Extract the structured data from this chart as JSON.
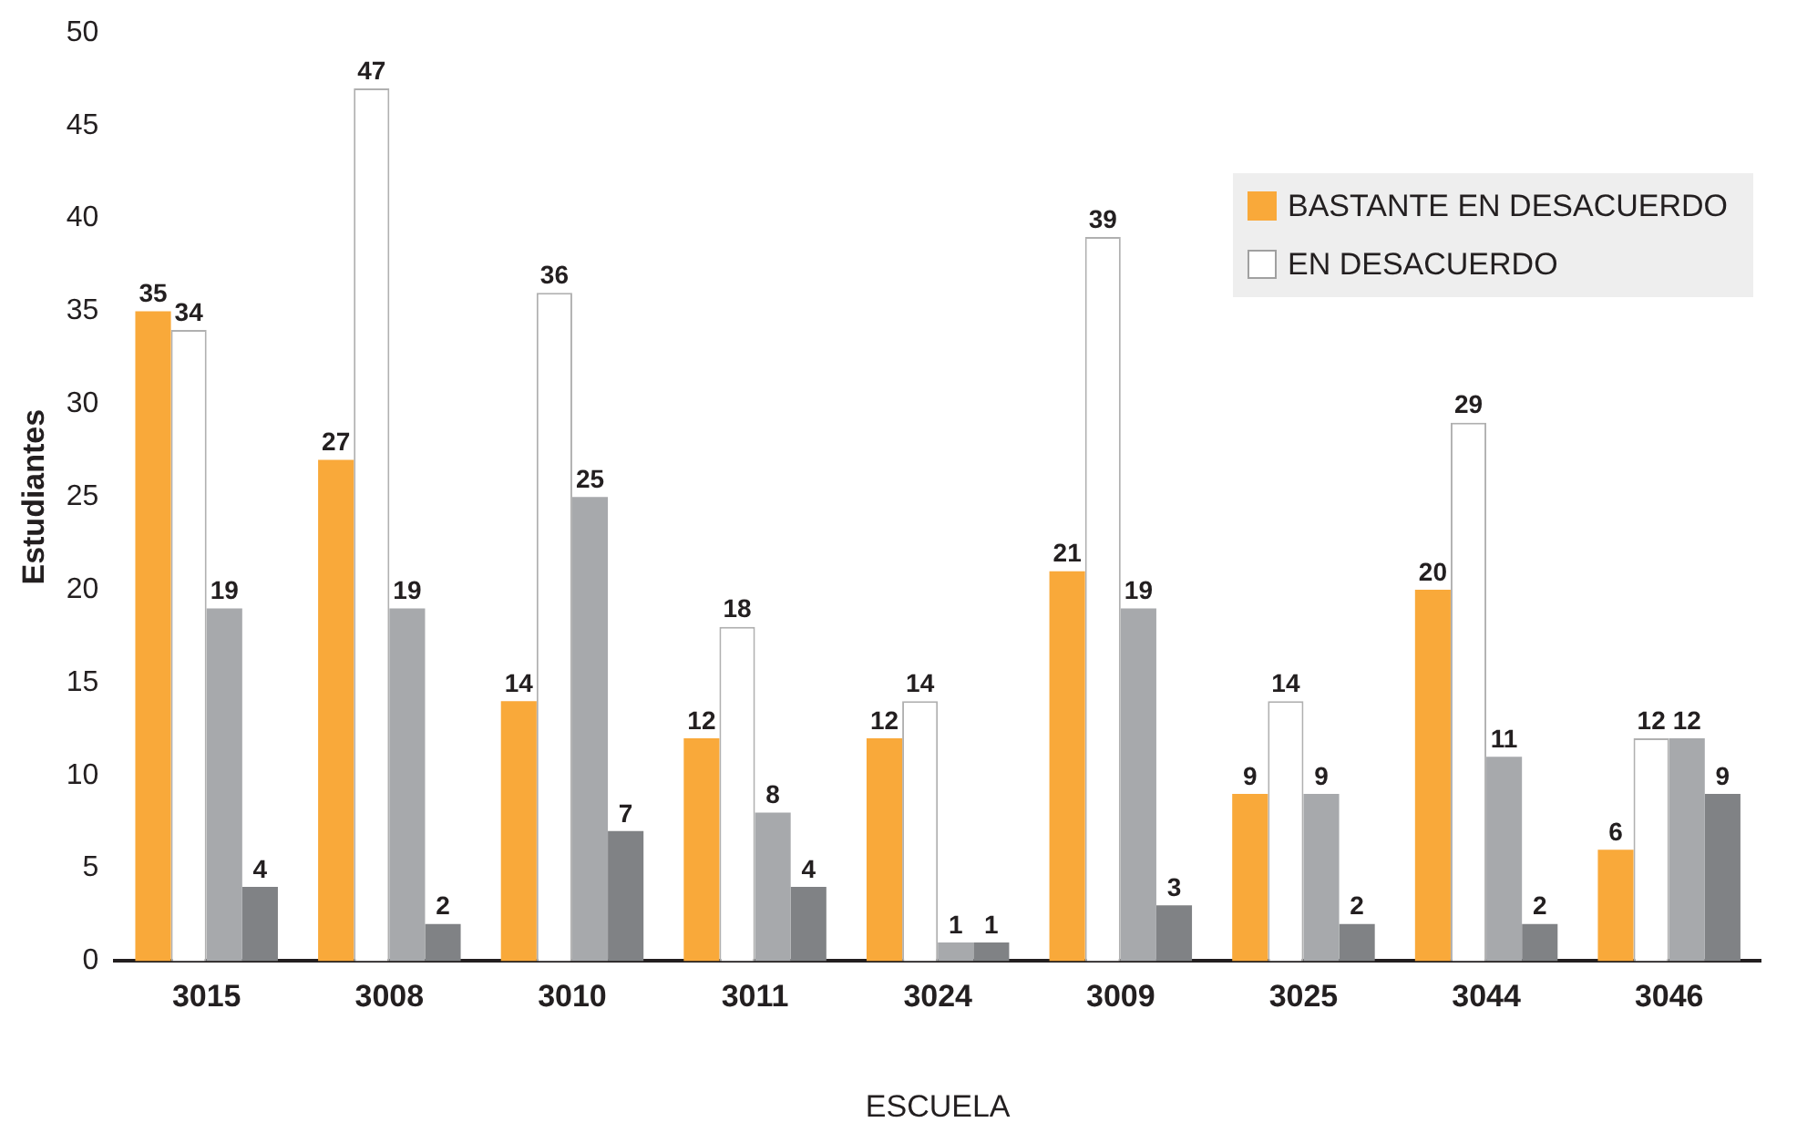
{
  "chart_data": {
    "type": "bar",
    "xlabel": "ESCUELA",
    "ylabel": "Estudiantes",
    "categories": [
      "3015",
      "3008",
      "3010",
      "3011",
      "3024",
      "3009",
      "3025",
      "3044",
      "3046"
    ],
    "series": [
      {
        "name": "BASTANTE EN DESACUERDO",
        "color": "#f9a93a",
        "values": [
          35,
          27,
          14,
          12,
          12,
          21,
          9,
          20,
          6
        ]
      },
      {
        "name": "EN DESACUERDO",
        "color": "#ffffff",
        "values": [
          34,
          47,
          36,
          18,
          14,
          39,
          14,
          29,
          12
        ]
      },
      {
        "color": "#a7a9ac",
        "values": [
          19,
          19,
          25,
          8,
          1,
          19,
          9,
          11,
          12
        ]
      },
      {
        "color": "#808285",
        "values": [
          4,
          2,
          7,
          4,
          1,
          3,
          2,
          2,
          9
        ]
      }
    ],
    "ylim": [
      0,
      50
    ],
    "yticks": [
      0,
      5,
      10,
      15,
      20,
      25,
      30,
      35,
      40,
      45,
      50
    ],
    "grid": false,
    "legend": "top right",
    "data_labels": true
  }
}
